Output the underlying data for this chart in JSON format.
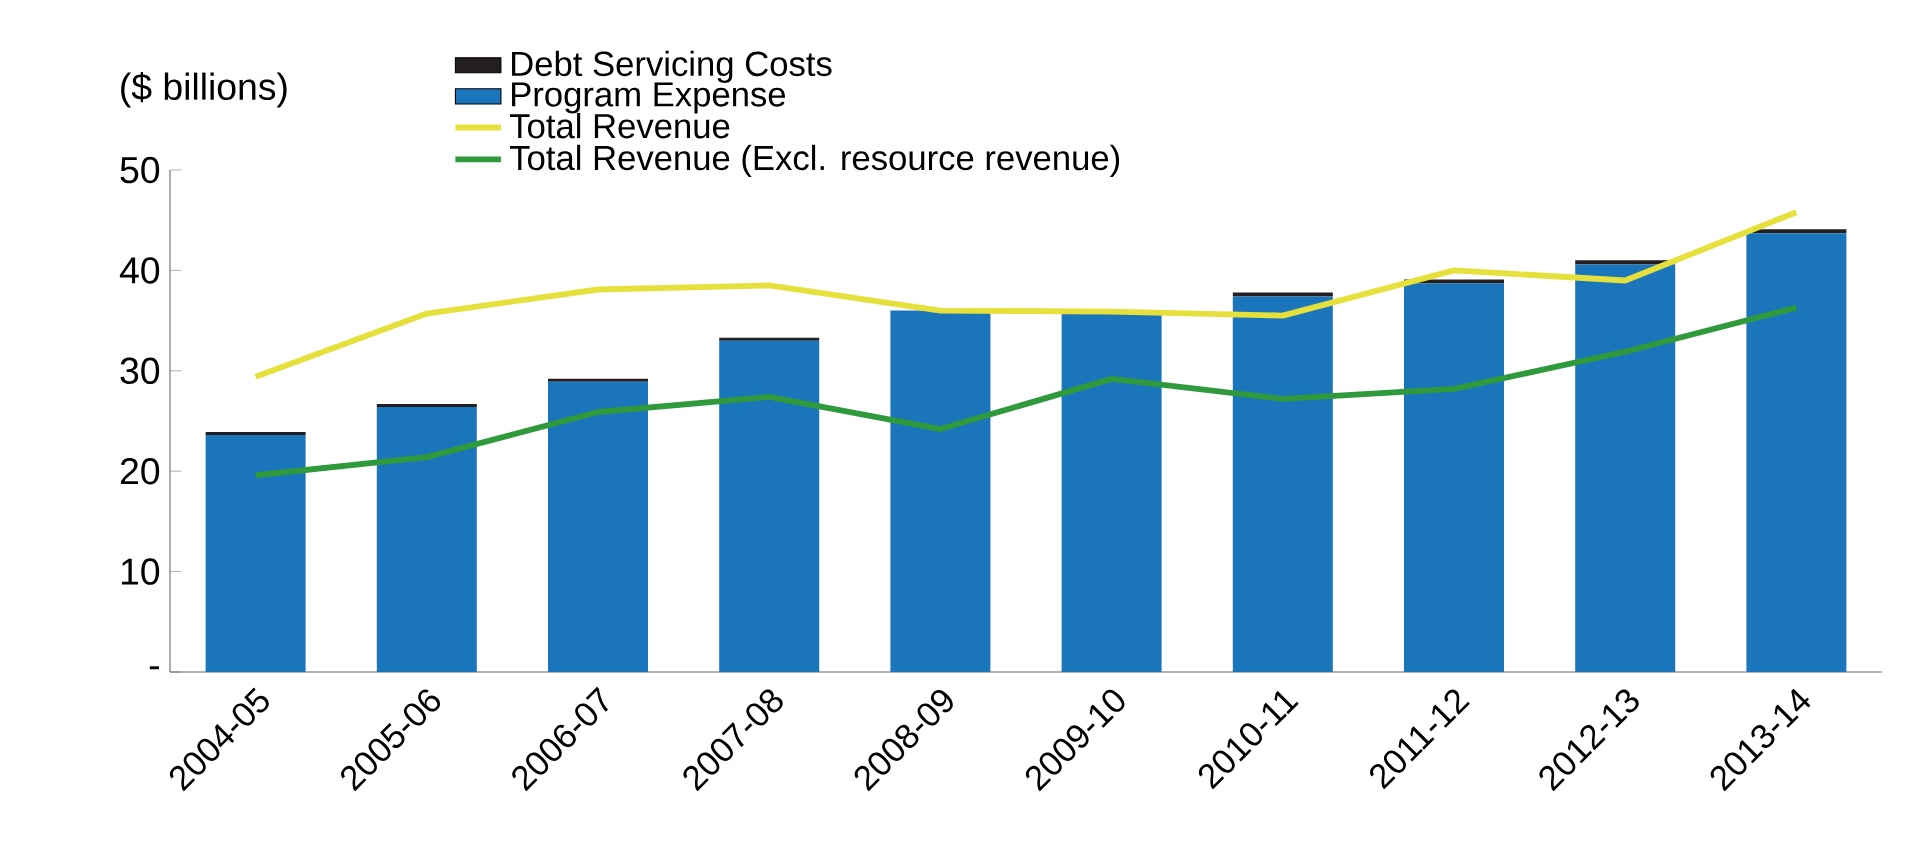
{
  "chart_data": {
    "type": "bar",
    "stacked": true,
    "ylabel": "($ billions)",
    "categories": [
      "2004-05",
      "2005-06",
      "2006-07",
      "2007-08",
      "2008-09",
      "2009-10",
      "2010-11",
      "2011-12",
      "2012-13",
      "2013-14"
    ],
    "series": [
      {
        "name": "Program Expense",
        "color": "#1b75bb",
        "values": [
          23.6,
          26.4,
          28.9,
          33.0,
          36.0,
          35.8,
          37.4,
          38.7,
          40.6,
          43.7
        ]
      },
      {
        "name": "Debt Servicing Costs",
        "color": "#231f20",
        "values": [
          0.3,
          0.3,
          0.3,
          0.3,
          null,
          null,
          0.4,
          0.4,
          0.4,
          0.4
        ]
      },
      {
        "name": "Total Revenue",
        "type": "line",
        "color": "#e6e03c",
        "values": [
          29.4,
          35.7,
          38.1,
          38.5,
          36.0,
          35.9,
          35.5,
          40.0,
          39.0,
          45.8
        ]
      },
      {
        "name": "Total Revenue (Excl. resource revenue)",
        "type": "line",
        "color": "#2f9a3c",
        "values": [
          19.6,
          21.4,
          25.9,
          27.4,
          24.2,
          29.2,
          27.2,
          28.2,
          31.9,
          36.3
        ]
      }
    ],
    "ylim": [
      0,
      50
    ],
    "yticks": [
      {
        "value": 0,
        "label": "-"
      },
      10,
      20,
      30,
      40,
      50
    ],
    "legend": "top left"
  }
}
